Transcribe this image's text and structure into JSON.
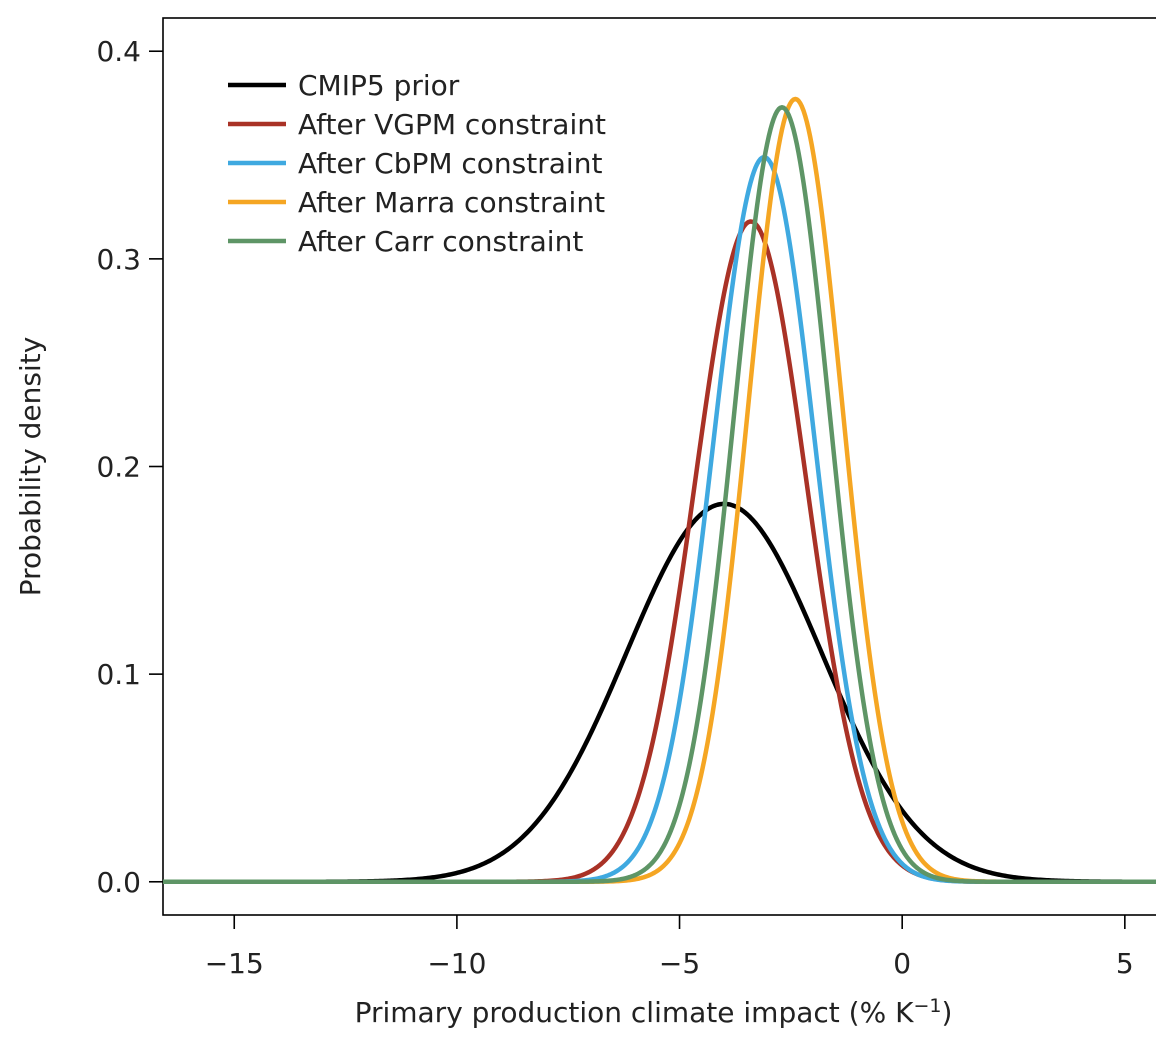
{
  "chart_data": {
    "type": "line",
    "xlabel": "Primary production climate impact (% K",
    "xlabel_sup": "−1",
    "xlabel_close": ")",
    "ylabel": "Probability density",
    "xlim": [
      -16.6,
      5.7
    ],
    "ylim": [
      -0.016,
      0.416
    ],
    "xticks": [
      -15,
      -10,
      -5,
      0,
      5
    ],
    "xtick_labels": [
      "−15",
      "−10",
      "−5",
      "0",
      "5"
    ],
    "yticks": [
      0.0,
      0.1,
      0.2,
      0.3,
      0.4
    ],
    "ytick_labels": [
      "0.0",
      "0.1",
      "0.2",
      "0.3",
      "0.4"
    ],
    "grid": false,
    "legend_position": "top-left",
    "series": [
      {
        "name": "CMIP5 prior",
        "color": "#000000",
        "peak_x": -4.0,
        "peak_density": 0.182,
        "sd": 2.19
      },
      {
        "name": "After VGPM constraint",
        "color": "#a93226",
        "peak_x": -3.4,
        "peak_density": 0.318,
        "sd": 1.25
      },
      {
        "name": "After CbPM constraint",
        "color": "#3fa9e0",
        "peak_x": -3.1,
        "peak_density": 0.349,
        "sd": 1.14
      },
      {
        "name": "After Marra constraint",
        "color": "#f5a623",
        "peak_x": -2.4,
        "peak_density": 0.377,
        "sd": 1.06
      },
      {
        "name": "After Carr constraint",
        "color": "#5e9566",
        "peak_x": -2.7,
        "peak_density": 0.373,
        "sd": 1.07
      }
    ]
  }
}
